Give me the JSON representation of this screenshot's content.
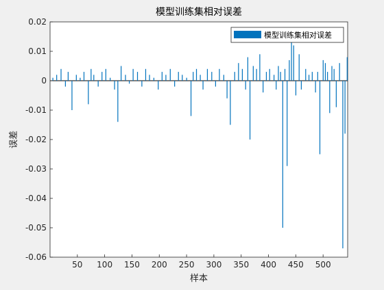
{
  "window": {
    "background": "#f0f0f0"
  },
  "chart_data": {
    "type": "bar",
    "title": "模型训练集相对误差",
    "xlabel": "样本",
    "ylabel": "误差",
    "xlim": [
      0,
      545
    ],
    "ylim": [
      -0.06,
      0.02
    ],
    "x_ticks": [
      50,
      100,
      150,
      200,
      250,
      300,
      350,
      400,
      450,
      500
    ],
    "x_tick_labels": [
      "50",
      "100",
      "150",
      "200",
      "250",
      "300",
      "350",
      "400",
      "450",
      "500"
    ],
    "y_ticks": [
      -0.06,
      -0.05,
      -0.04,
      -0.03,
      -0.02,
      -0.01,
      0,
      0.01,
      0.02
    ],
    "y_tick_labels": [
      "-0.06",
      "-0.05",
      "-0.04",
      "-0.03",
      "-0.02",
      "-0.01",
      "0",
      "0.01",
      "0.02"
    ],
    "grid": false,
    "legend": {
      "position": "top-right",
      "entries": [
        "模型训练集相对误差"
      ]
    },
    "bar_color": "#0072bd",
    "series": [
      {
        "name": "模型训练集相对误差",
        "color": "#0072bd",
        "x": [
          5,
          12,
          20,
          28,
          33,
          40,
          48,
          55,
          62,
          70,
          75,
          80,
          88,
          95,
          102,
          110,
          118,
          124,
          130,
          138,
          145,
          152,
          160,
          168,
          175,
          182,
          190,
          198,
          205,
          212,
          220,
          228,
          235,
          242,
          250,
          258,
          262,
          268,
          275,
          280,
          288,
          296,
          303,
          310,
          318,
          324,
          330,
          338,
          345,
          352,
          358,
          362,
          366,
          372,
          378,
          384,
          390,
          396,
          402,
          410,
          414,
          418,
          422,
          426,
          430,
          434,
          438,
          442,
          446,
          450,
          456,
          460,
          468,
          474,
          480,
          486,
          490,
          494,
          500,
          504,
          508,
          512,
          516,
          520,
          524,
          530,
          536,
          540,
          544
        ],
        "values": [
          0.001,
          0.002,
          0.004,
          -0.002,
          0.003,
          -0.01,
          0.002,
          0.001,
          0.003,
          -0.008,
          0.004,
          0.002,
          -0.002,
          0.003,
          0.004,
          0.001,
          -0.003,
          -0.014,
          0.005,
          0.002,
          -0.001,
          0.004,
          0.003,
          -0.002,
          0.004,
          0.002,
          0.001,
          -0.003,
          0.003,
          0.002,
          0.004,
          -0.002,
          0.003,
          0.002,
          0.001,
          -0.012,
          0.003,
          0.004,
          0.002,
          -0.003,
          0.004,
          0.003,
          -0.002,
          0.004,
          0.002,
          -0.006,
          -0.015,
          0.003,
          0.006,
          0.004,
          -0.003,
          0.008,
          -0.02,
          0.005,
          0.004,
          0.009,
          -0.004,
          0.003,
          0.004,
          0.002,
          -0.003,
          0.005,
          0.003,
          -0.05,
          0.004,
          -0.029,
          0.007,
          0.013,
          0.012,
          -0.005,
          0.009,
          -0.003,
          0.004,
          0.002,
          0.003,
          -0.004,
          0.003,
          -0.025,
          0.007,
          0.006,
          0.003,
          -0.011,
          0.005,
          0.004,
          -0.009,
          0.006,
          -0.057,
          -0.018,
          0.008
        ]
      }
    ]
  }
}
